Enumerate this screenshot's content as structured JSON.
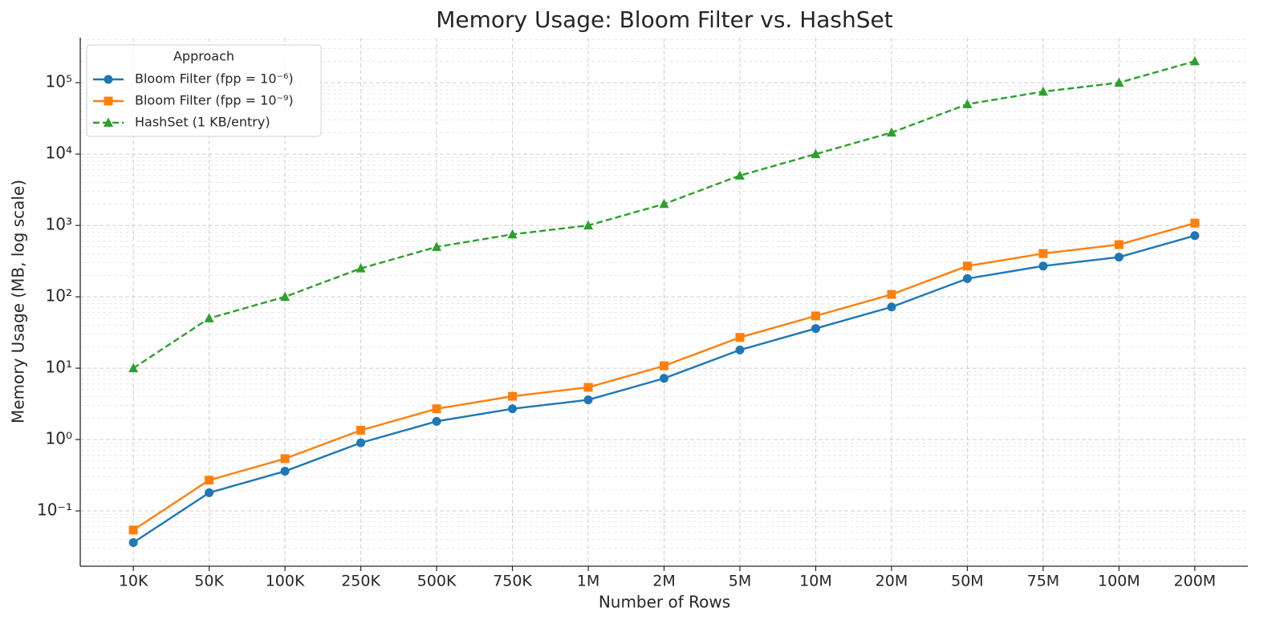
{
  "chart_data": {
    "type": "line",
    "title": "Memory Usage: Bloom Filter vs. HashSet",
    "x_label": "Number of Rows",
    "y_label": "Memory Usage (MB, log scale)",
    "categories": [
      "10K",
      "50K",
      "100K",
      "250K",
      "500K",
      "750K",
      "1M",
      "2M",
      "5M",
      "10M",
      "20M",
      "50M",
      "75M",
      "100M",
      "200M"
    ],
    "series": [
      {
        "name": "Bloom Filter (fpp = 10⁻⁶)",
        "color": "#1f77b4",
        "marker": "circle",
        "linestyle": "solid",
        "values": [
          0.036,
          0.18,
          0.36,
          0.9,
          1.8,
          2.7,
          3.6,
          7.2,
          18,
          36,
          72,
          180,
          270,
          360,
          720
        ]
      },
      {
        "name": "Bloom Filter (fpp = 10⁻⁹)",
        "color": "#ff7f0e",
        "marker": "square",
        "linestyle": "solid",
        "values": [
          0.054,
          0.27,
          0.54,
          1.35,
          2.7,
          4.04,
          5.39,
          10.8,
          27,
          54,
          108,
          270,
          404,
          539,
          1078
        ]
      },
      {
        "name": "HashSet (1 KB/entry)",
        "color": "#2ca02c",
        "marker": "triangle",
        "linestyle": "dashed",
        "values": [
          10,
          50,
          100,
          250,
          500,
          750,
          1000,
          2000,
          5000,
          10000,
          20000,
          50000,
          75000,
          100000,
          200000
        ]
      }
    ],
    "yscale": "log",
    "ylim": [
      0.0168,
      427000
    ],
    "yticks": [
      {
        "value": 0.1,
        "label": "10⁻¹"
      },
      {
        "value": 1,
        "label": "10⁰"
      },
      {
        "value": 10,
        "label": "10¹"
      },
      {
        "value": 100,
        "label": "10²"
      },
      {
        "value": 1000,
        "label": "10³"
      },
      {
        "value": 10000,
        "label": "10⁴"
      },
      {
        "value": 100000,
        "label": "10⁵"
      }
    ],
    "grid": true,
    "minor_grid": true,
    "legend": "upper left",
    "legend_title": "Approach"
  }
}
